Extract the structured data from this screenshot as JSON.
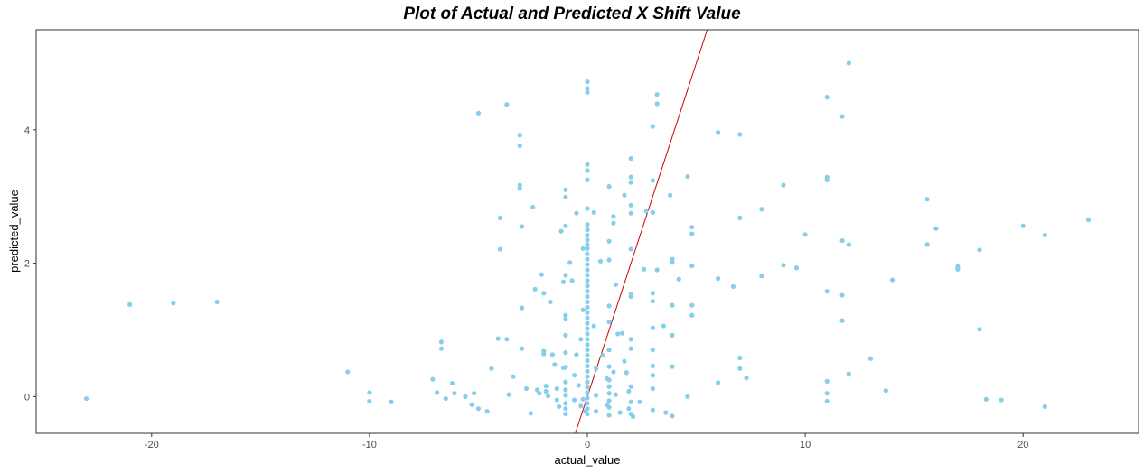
{
  "chart_data": {
    "type": "scatter",
    "title": "Plot of Actual and Predicted X Shift Value",
    "xlabel": "actual_value",
    "ylabel": "predicted_value",
    "xlim": [
      -25.3,
      25.3
    ],
    "ylim": [
      -0.55,
      5.5
    ],
    "x_ticks": [
      -20,
      -10,
      0,
      10,
      20
    ],
    "x_tick_labels": [
      "-20",
      "-10",
      "0",
      "10",
      "20"
    ],
    "y_ticks": [
      0,
      2,
      4
    ],
    "y_tick_labels": [
      "0",
      "2",
      "4"
    ],
    "grid": false,
    "point_color": "#87CEEB",
    "reference_line": {
      "slope": 1,
      "intercept": 0,
      "color": "#CC0000"
    },
    "points": [
      [
        -23,
        -0.03
      ],
      [
        -21,
        1.38
      ],
      [
        -19,
        1.4
      ],
      [
        -17,
        1.42
      ],
      [
        -11,
        0.37
      ],
      [
        -10,
        0.06
      ],
      [
        -10,
        -0.07
      ],
      [
        -9,
        -0.08
      ],
      [
        -6.7,
        0.82
      ],
      [
        -6.7,
        0.72
      ],
      [
        -7.1,
        0.26
      ],
      [
        -6.9,
        0.06
      ],
      [
        -6.5,
        -0.03
      ],
      [
        -6.2,
        0.2
      ],
      [
        -6.1,
        0.05
      ],
      [
        -5.6,
        0
      ],
      [
        -5.3,
        -0.12
      ],
      [
        -5.2,
        0.05
      ],
      [
        -5,
        -0.18
      ],
      [
        -4.6,
        -0.22
      ],
      [
        -4.4,
        0.42
      ],
      [
        -4.1,
        0.87
      ],
      [
        -4,
        2.68
      ],
      [
        -4,
        2.21
      ],
      [
        -5,
        4.25
      ],
      [
        -3.7,
        4.38
      ],
      [
        -3.7,
        0.86
      ],
      [
        -3.6,
        0.03
      ],
      [
        -3.4,
        0.3
      ],
      [
        -3.1,
        3.92
      ],
      [
        -3.1,
        3.76
      ],
      [
        -3.1,
        3.17
      ],
      [
        -3.1,
        3.12
      ],
      [
        -3,
        2.55
      ],
      [
        -3,
        1.33
      ],
      [
        -3,
        0.72
      ],
      [
        -2.8,
        0.12
      ],
      [
        -2.6,
        -0.25
      ],
      [
        -2.5,
        2.84
      ],
      [
        -2.4,
        1.61
      ],
      [
        -2.3,
        0.1
      ],
      [
        -2.2,
        0.05
      ],
      [
        -2.1,
        1.83
      ],
      [
        -2,
        1.55
      ],
      [
        -2,
        0.68
      ],
      [
        -2,
        0.64
      ],
      [
        -1.9,
        0.16
      ],
      [
        -1.9,
        0.08
      ],
      [
        -1.8,
        0.01
      ],
      [
        -1.7,
        1.42
      ],
      [
        -1.6,
        0.63
      ],
      [
        -1.5,
        0.48
      ],
      [
        -1.4,
        0.12
      ],
      [
        -1.4,
        -0.05
      ],
      [
        -1.3,
        -0.15
      ],
      [
        -1.2,
        2.48
      ],
      [
        -1.1,
        1.72
      ],
      [
        -1.1,
        0.43
      ],
      [
        -1,
        3.1
      ],
      [
        -1,
        2.99
      ],
      [
        -1,
        2.56
      ],
      [
        -1,
        1.82
      ],
      [
        -1,
        1.22
      ],
      [
        -1,
        1.16
      ],
      [
        -1,
        0.92
      ],
      [
        -1,
        0.66
      ],
      [
        -1,
        0.44
      ],
      [
        -1,
        0.22
      ],
      [
        -1,
        0.1
      ],
      [
        -1,
        0.02
      ],
      [
        -1,
        -0.1
      ],
      [
        -1,
        -0.18
      ],
      [
        -1,
        -0.26
      ],
      [
        -0.8,
        2.01
      ],
      [
        -0.7,
        1.74
      ],
      [
        -0.6,
        0.32
      ],
      [
        -0.6,
        -0.05
      ],
      [
        -0.5,
        2.75
      ],
      [
        -0.5,
        0.63
      ],
      [
        -0.4,
        0.17
      ],
      [
        -0.3,
        0.86
      ],
      [
        -0.3,
        -0.14
      ],
      [
        -0.2,
        2.22
      ],
      [
        -0.2,
        1.3
      ],
      [
        -0.2,
        -0.04
      ],
      [
        -0.1,
        -0.22
      ],
      [
        0,
        4.72
      ],
      [
        0,
        4.62
      ],
      [
        0,
        4.56
      ],
      [
        0,
        3.48
      ],
      [
        0,
        3.39
      ],
      [
        0,
        3.25
      ],
      [
        0,
        2.82
      ],
      [
        0,
        2.58
      ],
      [
        0,
        2.5
      ],
      [
        0,
        2.42
      ],
      [
        0,
        2.35
      ],
      [
        0,
        2.28
      ],
      [
        0,
        2.22
      ],
      [
        0,
        2.14
      ],
      [
        0,
        2.06
      ],
      [
        0,
        1.98
      ],
      [
        0,
        1.9
      ],
      [
        0,
        1.82
      ],
      [
        0,
        1.74
      ],
      [
        0,
        1.66
      ],
      [
        0,
        1.58
      ],
      [
        0,
        1.5
      ],
      [
        0,
        1.42
      ],
      [
        0,
        1.34
      ],
      [
        0,
        1.26
      ],
      [
        0,
        1.18
      ],
      [
        0,
        1.1
      ],
      [
        0,
        1.02
      ],
      [
        0,
        0.94
      ],
      [
        0,
        0.86
      ],
      [
        0,
        0.78
      ],
      [
        0,
        0.7
      ],
      [
        0,
        0.62
      ],
      [
        0,
        0.54
      ],
      [
        0,
        0.46
      ],
      [
        0,
        0.38
      ],
      [
        0,
        0.3
      ],
      [
        0,
        0.22
      ],
      [
        0,
        0.14
      ],
      [
        0,
        0.06
      ],
      [
        0,
        -0.02
      ],
      [
        0,
        -0.1
      ],
      [
        0,
        -0.18
      ],
      [
        0,
        -0.26
      ],
      [
        0.3,
        2.76
      ],
      [
        0.3,
        1.06
      ],
      [
        0.4,
        0.42
      ],
      [
        0.4,
        0.02
      ],
      [
        0.4,
        -0.22
      ],
      [
        0.6,
        2.03
      ],
      [
        0.7,
        0.62
      ],
      [
        0.9,
        0.27
      ],
      [
        0.9,
        -0.12
      ],
      [
        1,
        3.15
      ],
      [
        1,
        2.33
      ],
      [
        1,
        2.05
      ],
      [
        1,
        1.36
      ],
      [
        1,
        1.12
      ],
      [
        1,
        0.7
      ],
      [
        1,
        0.45
      ],
      [
        1,
        0.25
      ],
      [
        1,
        0.15
      ],
      [
        1,
        0.05
      ],
      [
        1,
        -0.06
      ],
      [
        1,
        -0.16
      ],
      [
        1,
        -0.28
      ],
      [
        1.2,
        2.7
      ],
      [
        1.2,
        2.6
      ],
      [
        1.2,
        0.37
      ],
      [
        1.3,
        1.68
      ],
      [
        1.3,
        0.03
      ],
      [
        1.4,
        0.94
      ],
      [
        1.5,
        -0.24
      ],
      [
        1.6,
        0.95
      ],
      [
        1.7,
        3.02
      ],
      [
        1.7,
        0.53
      ],
      [
        1.8,
        0.36
      ],
      [
        1.9,
        0.08
      ],
      [
        1.9,
        -0.18
      ],
      [
        2,
        3.57
      ],
      [
        2,
        3.29
      ],
      [
        2,
        3.21
      ],
      [
        2,
        2.87
      ],
      [
        2,
        2.75
      ],
      [
        2,
        2.21
      ],
      [
        2,
        1.54
      ],
      [
        2,
        1.5
      ],
      [
        2,
        0.86
      ],
      [
        2,
        0.72
      ],
      [
        2,
        0.15
      ],
      [
        2,
        -0.08
      ],
      [
        2,
        -0.26
      ],
      [
        2.1,
        -0.3
      ],
      [
        2.4,
        -0.08
      ],
      [
        2.6,
        1.91
      ],
      [
        2.7,
        2.78
      ],
      [
        3,
        4.05
      ],
      [
        3,
        3.24
      ],
      [
        3,
        2.76
      ],
      [
        3,
        1.55
      ],
      [
        3,
        1.43
      ],
      [
        3,
        1.03
      ],
      [
        3,
        0.7
      ],
      [
        3,
        0.46
      ],
      [
        3,
        0.32
      ],
      [
        3,
        0.12
      ],
      [
        3,
        -0.2
      ],
      [
        3.2,
        4.53
      ],
      [
        3.2,
        4.39
      ],
      [
        3.2,
        1.9
      ],
      [
        3.5,
        1.06
      ],
      [
        3.6,
        -0.24
      ],
      [
        3.8,
        3.02
      ],
      [
        3.9,
        2.06
      ],
      [
        3.9,
        2.01
      ],
      [
        3.9,
        1.37
      ],
      [
        3.9,
        0.92
      ],
      [
        3.9,
        0.45
      ],
      [
        3.9,
        -0.29
      ],
      [
        4.2,
        1.76
      ],
      [
        4.6,
        3.3
      ],
      [
        4.6,
        0
      ],
      [
        4.8,
        2.54
      ],
      [
        4.8,
        2.44
      ],
      [
        4.8,
        1.96
      ],
      [
        4.8,
        1.37
      ],
      [
        4.8,
        1.22
      ],
      [
        6,
        3.96
      ],
      [
        6,
        1.77
      ],
      [
        6,
        0.21
      ],
      [
        6.7,
        1.65
      ],
      [
        7,
        3.93
      ],
      [
        7,
        2.68
      ],
      [
        7,
        0.58
      ],
      [
        7,
        0.42
      ],
      [
        7.3,
        0.28
      ],
      [
        8,
        2.81
      ],
      [
        8,
        1.81
      ],
      [
        9,
        3.17
      ],
      [
        9,
        1.97
      ],
      [
        9.6,
        1.93
      ],
      [
        10,
        2.43
      ],
      [
        11,
        4.49
      ],
      [
        11,
        3.29
      ],
      [
        11,
        3.25
      ],
      [
        11,
        1.58
      ],
      [
        11,
        0.23
      ],
      [
        11,
        0.05
      ],
      [
        11,
        -0.07
      ],
      [
        11.7,
        4.2
      ],
      [
        11.7,
        2.34
      ],
      [
        11.7,
        1.52
      ],
      [
        11.7,
        1.14
      ],
      [
        12,
        5
      ],
      [
        12,
        2.28
      ],
      [
        12,
        0.34
      ],
      [
        13,
        0.57
      ],
      [
        13.7,
        0.09
      ],
      [
        14,
        1.75
      ],
      [
        15.6,
        2.96
      ],
      [
        15.6,
        2.28
      ],
      [
        16,
        2.52
      ],
      [
        17,
        1.95
      ],
      [
        17,
        1.91
      ],
      [
        18,
        2.2
      ],
      [
        18,
        1.01
      ],
      [
        18.3,
        -0.04
      ],
      [
        19,
        -0.05
      ],
      [
        20,
        2.56
      ],
      [
        21,
        2.42
      ],
      [
        21,
        -0.15
      ],
      [
        23,
        2.65
      ]
    ]
  }
}
